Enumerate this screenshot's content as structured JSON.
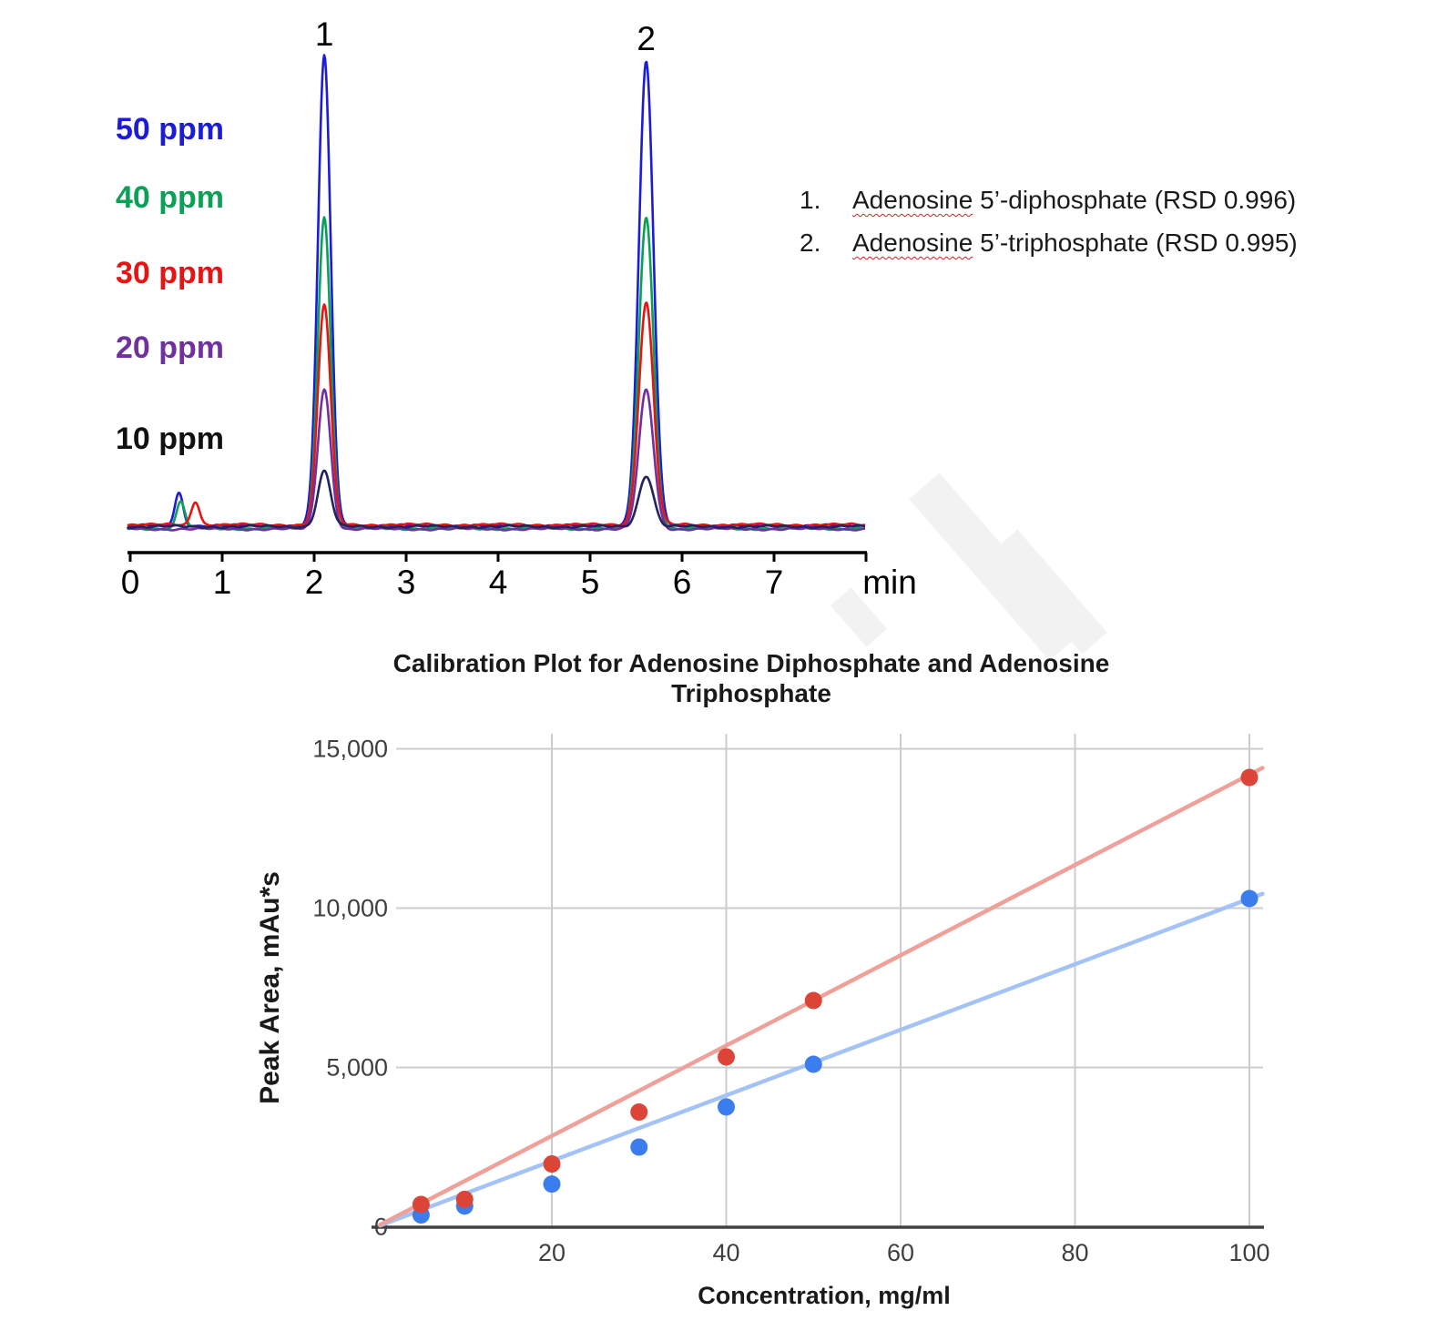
{
  "chromatogram": {
    "concentration_labels": [
      {
        "label": "50 ppm",
        "color": "#1b1bd8"
      },
      {
        "label": "40 ppm",
        "color": "#0aa157"
      },
      {
        "label": "30 ppm",
        "color": "#e81414"
      },
      {
        "label": "20 ppm",
        "color": "#7030a0"
      },
      {
        "label": "10 ppm",
        "color": "#111111"
      }
    ],
    "x_axis": {
      "unit_label": "min",
      "tick_labels": [
        "0",
        "1",
        "2",
        "3",
        "4",
        "5",
        "6",
        "7"
      ]
    },
    "legend_items": [
      {
        "number": "1.",
        "underlined_word": "Adenosine",
        "text": " 5’-diphosphate (RSD 0.996)"
      },
      {
        "number": "2.",
        "underlined_word": "Adenosine",
        "text": " 5’-triphosphate (RSD 0.995)"
      }
    ]
  },
  "chart_data": [
    {
      "type": "line",
      "subtype": "chromatogram-overlay",
      "title": "",
      "xlabel": "min",
      "x_ticks": [
        0,
        1,
        2,
        3,
        4,
        5,
        6,
        7,
        8
      ],
      "x_tick_labels": [
        "0",
        "1",
        "2",
        "3",
        "4",
        "5",
        "6",
        "7",
        ""
      ],
      "xlim": [
        0,
        8.1
      ],
      "grid": false,
      "peaks": [
        {
          "id": "1",
          "retention_min": 2.11,
          "compound": "Adenosine 5’-diphosphate",
          "rsd": "0.996"
        },
        {
          "id": "2",
          "retention_min": 5.61,
          "compound": "Adenosine 5’-triphosphate",
          "rsd": "0.995"
        }
      ],
      "traces": [
        {
          "label": "50 ppm",
          "color": "#1b1bd8",
          "peak_heights_rel": [
            1.0,
            0.988
          ],
          "minor_peaks": [
            {
              "retention_min": 0.53,
              "height_rel": 0.07
            }
          ]
        },
        {
          "label": "40 ppm",
          "color": "#0aa157",
          "peak_heights_rel": [
            0.663,
            0.663
          ],
          "minor_peaks": [
            {
              "retention_min": 0.55,
              "height_rel": 0.058
            }
          ]
        },
        {
          "label": "30 ppm",
          "color": "#e81414",
          "peak_heights_rel": [
            0.469,
            0.473
          ],
          "minor_peaks": [
            {
              "retention_min": 0.71,
              "height_rel": 0.05
            }
          ]
        },
        {
          "label": "20 ppm",
          "color": "#7030a0",
          "peak_heights_rel": [
            0.298,
            0.295
          ],
          "minor_peaks": []
        },
        {
          "label": "10 ppm",
          "color": "#23235e",
          "peak_heights_rel": [
            0.118,
            0.109
          ],
          "minor_peaks": []
        }
      ]
    },
    {
      "type": "scatter",
      "title": "Calibration Plot for Adenosine Diphosphate and Adenosine Triphosphate",
      "xlabel": "Concentration, mg/ml",
      "ylabel": "Peak Area, mAu*s",
      "xlim": [
        0,
        104
      ],
      "ylim": [
        0,
        15000
      ],
      "x_ticks": [
        20,
        40,
        60,
        80,
        100
      ],
      "y_ticks": [
        0,
        5000,
        10000,
        15000
      ],
      "y_tick_labels": [
        "0",
        "5,000",
        "10,000",
        "15,000"
      ],
      "grid": true,
      "legend_position": "none",
      "series": [
        {
          "name": "series-red",
          "dot_color": "#dc4437",
          "line_color": "#efa099",
          "points": [
            [
              5,
              700
            ],
            [
              10,
              860
            ],
            [
              20,
              1970
            ],
            [
              30,
              3600
            ],
            [
              40,
              5330
            ],
            [
              50,
              7100
            ],
            [
              100,
              14100
            ]
          ],
          "trendline": [
            [
              0.3,
              60
            ],
            [
              101.5,
              14400
            ]
          ]
        },
        {
          "name": "series-blue",
          "dot_color": "#3b7ded",
          "line_color": "#a3c3f7",
          "points": [
            [
              5,
              370
            ],
            [
              10,
              650
            ],
            [
              20,
              1340
            ],
            [
              30,
              2500
            ],
            [
              40,
              3760
            ],
            [
              50,
              5100
            ],
            [
              100,
              10300
            ]
          ],
          "trendline": [
            [
              0.3,
              40
            ],
            [
              101.5,
              10450
            ]
          ]
        }
      ]
    }
  ]
}
